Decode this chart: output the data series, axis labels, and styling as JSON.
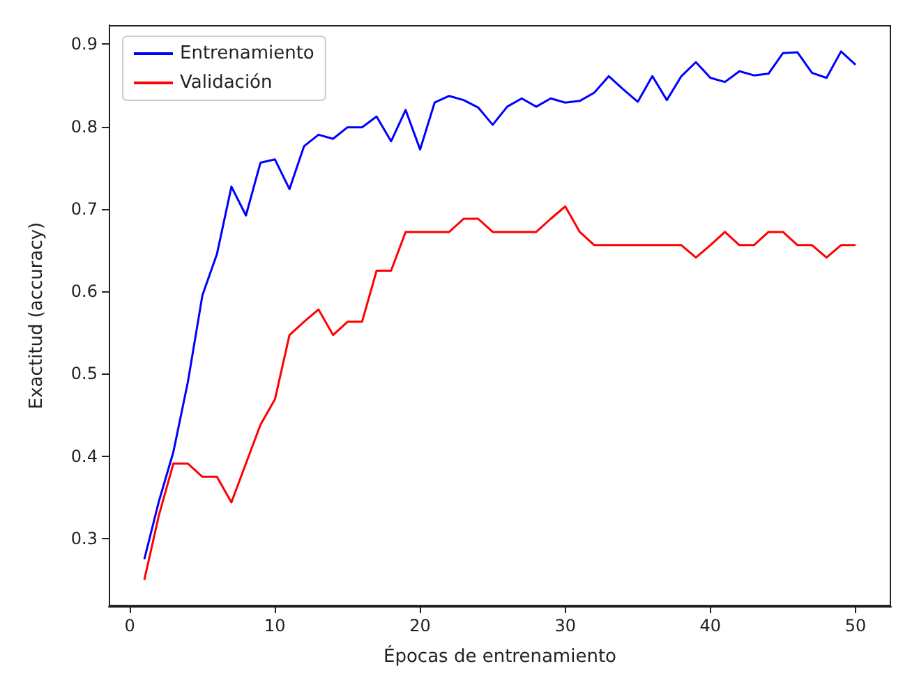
{
  "chart_data": {
    "type": "line",
    "xlabel": "Épocas de entrenamiento",
    "ylabel": "Exactitud (accuracy)",
    "x": [
      1,
      2,
      3,
      4,
      5,
      6,
      7,
      8,
      9,
      10,
      11,
      12,
      13,
      14,
      15,
      16,
      17,
      18,
      19,
      20,
      21,
      22,
      23,
      24,
      25,
      26,
      27,
      28,
      29,
      30,
      31,
      32,
      33,
      34,
      35,
      36,
      37,
      38,
      39,
      40,
      41,
      42,
      43,
      44,
      45,
      46,
      47,
      48,
      49,
      50
    ],
    "series": [
      {
        "name": "Entrenamiento",
        "color": "#0000ff",
        "values": [
          0.275,
          0.345,
          0.405,
          0.49,
          0.595,
          0.645,
          0.727,
          0.692,
          0.756,
          0.76,
          0.724,
          0.776,
          0.79,
          0.785,
          0.799,
          0.799,
          0.812,
          0.782,
          0.82,
          0.772,
          0.829,
          0.837,
          0.832,
          0.823,
          0.802,
          0.824,
          0.834,
          0.824,
          0.834,
          0.829,
          0.831,
          0.841,
          0.861,
          0.845,
          0.83,
          0.861,
          0.832,
          0.861,
          0.878,
          0.859,
          0.854,
          0.867,
          0.862,
          0.864,
          0.889,
          0.89,
          0.865,
          0.859,
          0.891,
          0.875
        ]
      },
      {
        "name": "Validación",
        "color": "#ff0000",
        "values": [
          0.25,
          0.328,
          0.391,
          0.391,
          0.375,
          0.375,
          0.344,
          0.391,
          0.438,
          0.469,
          0.547,
          0.563,
          0.578,
          0.547,
          0.563,
          0.563,
          0.625,
          0.625,
          0.672,
          0.672,
          0.672,
          0.672,
          0.688,
          0.688,
          0.672,
          0.672,
          0.672,
          0.672,
          0.688,
          0.703,
          0.672,
          0.656,
          0.656,
          0.656,
          0.656,
          0.656,
          0.656,
          0.656,
          0.641,
          0.656,
          0.672,
          0.656,
          0.656,
          0.672,
          0.672,
          0.656,
          0.656,
          0.641,
          0.656,
          0.656
        ]
      }
    ],
    "xlim": [
      -1.45,
      52.45
    ],
    "xticks": [
      0,
      10,
      20,
      30,
      40,
      50
    ],
    "ylim": [
      0.218,
      0.923
    ],
    "yticks": [
      0.3,
      0.4,
      0.5,
      0.6,
      0.7,
      0.8,
      0.9
    ],
    "grid": false,
    "legend": "top left",
    "marker": "none",
    "line_style": "solid"
  }
}
